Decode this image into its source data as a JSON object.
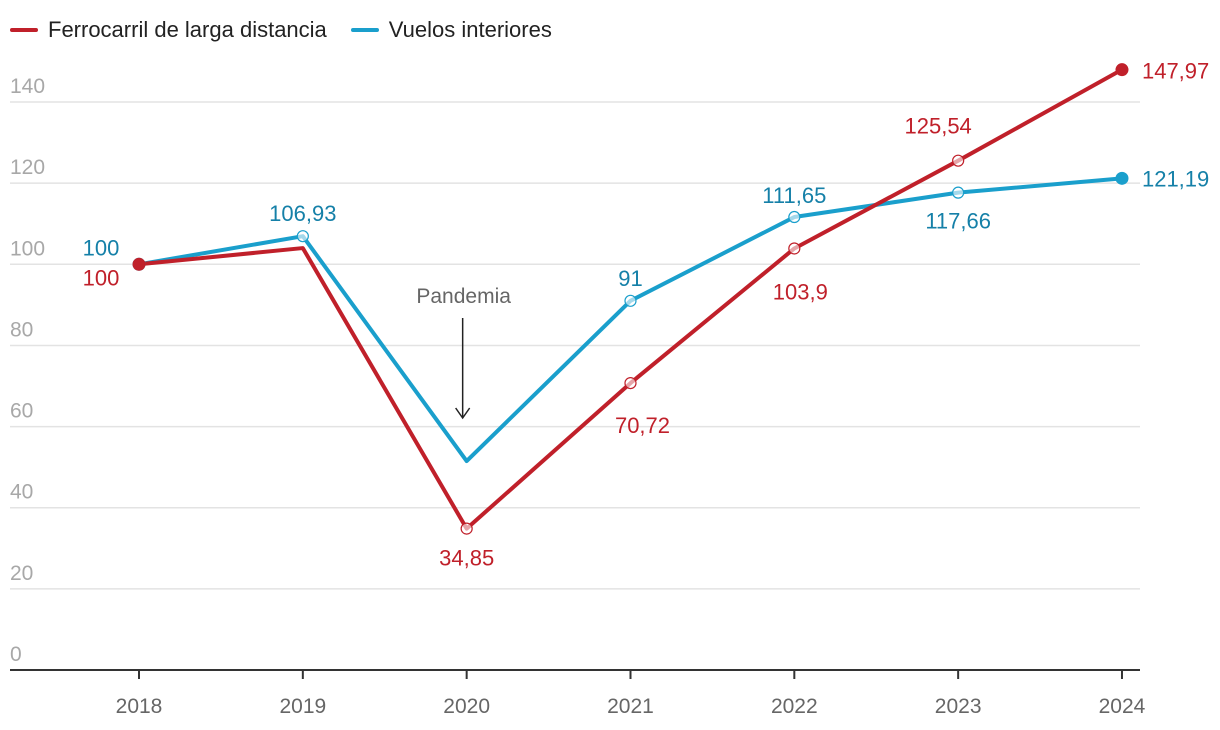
{
  "chart_data": {
    "type": "line",
    "title": "",
    "xlabel": "",
    "ylabel": "",
    "x": [
      "2018",
      "2019",
      "2020",
      "2021",
      "2022",
      "2023",
      "2024"
    ],
    "ylim": [
      0,
      150
    ],
    "yticks": [
      0,
      20,
      40,
      60,
      80,
      100,
      120,
      140
    ],
    "grid": true,
    "legend_position": "top-left",
    "series": [
      {
        "name": "Ferrocarril de larga distancia",
        "color": "#c0202a",
        "values": [
          100,
          104,
          34.85,
          70.72,
          103.9,
          125.54,
          147.97
        ],
        "labels": [
          "100",
          "",
          "34,85",
          "70,72",
          "103,9",
          "125,54",
          "147,97"
        ]
      },
      {
        "name": "Vuelos interiores",
        "color": "#1a9fcc",
        "label_color": "#1580a8",
        "values": [
          100,
          106.93,
          51.5,
          91,
          111.65,
          117.66,
          121.19
        ],
        "labels": [
          "100",
          "106,93",
          "",
          "91",
          "111,65",
          "117,66",
          "121,19"
        ]
      }
    ],
    "annotations": [
      {
        "text": "Pandemia",
        "x": "2020",
        "arrow": "down"
      }
    ]
  }
}
